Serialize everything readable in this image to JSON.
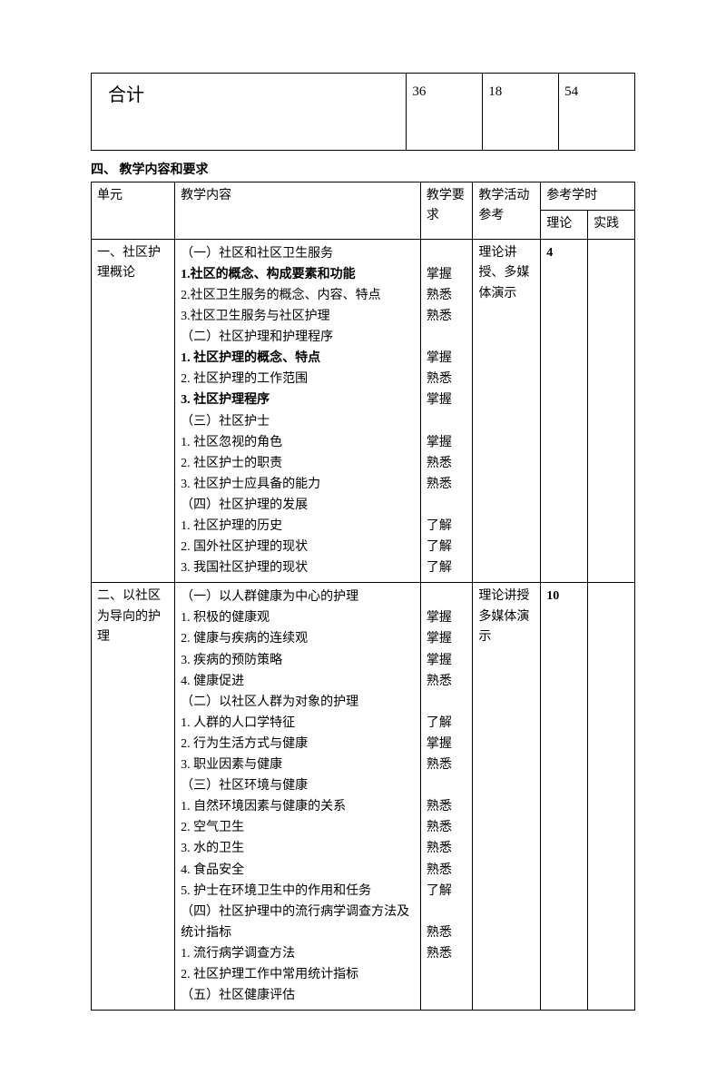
{
  "summary": {
    "label": "合计",
    "col1": "36",
    "col2": "18",
    "col3": "54"
  },
  "section_heading": "四、    教学内容和要求",
  "headers": {
    "unit": "单元",
    "content": "教学内容",
    "req": "教学要求",
    "activity": "教学活动参考",
    "ref_hours": "参考学时",
    "theory": "理论",
    "practice": "实践"
  },
  "rows": [
    {
      "unit": "一、社区护理概论",
      "activity": "理论讲授、多媒体演示",
      "theory": "4",
      "practice": "",
      "lines": [
        {
          "t": "（一）社区和社区卫生服务",
          "r": ""
        },
        {
          "t": "1.社区的概念、构成要素和功能",
          "b": true,
          "r": "掌握"
        },
        {
          "t": "2.社区卫生服务的概念、内容、特点",
          "r": "熟悉"
        },
        {
          "t": "3.社区卫生服务与社区护理",
          "r": "熟悉"
        },
        {
          "t": "（二）社区护理和护理程序",
          "r": ""
        },
        {
          "t": "1.  社区护理的概念、特点",
          "b": true,
          "r": "掌握"
        },
        {
          "t": "2.  社区护理的工作范围",
          "r": "熟悉"
        },
        {
          "t": "3.  社区护理程序",
          "b": true,
          "r": "掌握"
        },
        {
          "t": "（三）社区护士",
          "r": ""
        },
        {
          "t": "1. 社区忽视的角色",
          "r": "掌握"
        },
        {
          "t": "2. 社区护士的职责",
          "r": "熟悉"
        },
        {
          "t": "3. 社区护士应具备的能力",
          "r": "熟悉"
        },
        {
          "t": "（四）社区护理的发展",
          "r": ""
        },
        {
          "t": "1. 社区护理的历史",
          "r": "了解"
        },
        {
          "t": "2. 国外社区护理的现状",
          "r": "了解"
        },
        {
          "t": "3. 我国社区护理的现状",
          "r": "了解"
        }
      ]
    },
    {
      "unit": "二、以社区为导向的护理",
      "activity": "理论讲授\n多媒体演示",
      "theory": "10",
      "practice": "",
      "lines": [
        {
          "t": "（一）以人群健康为中心的护理",
          "r": ""
        },
        {
          "t": "1.  积极的健康观",
          "r": "掌握"
        },
        {
          "t": "2.  健康与疾病的连续观",
          "r": "掌握"
        },
        {
          "t": "3.  疾病的预防策略",
          "r": "掌握"
        },
        {
          "t": "4.  健康促进",
          "r": "熟悉"
        },
        {
          "t": "（二）以社区人群为对象的护理",
          "r": ""
        },
        {
          "t": "1.  人群的人口学特征",
          "r": "了解"
        },
        {
          "t": "2.  行为生活方式与健康",
          "r": "掌握"
        },
        {
          "t": "3.  职业因素与健康",
          "r": "熟悉"
        },
        {
          "t": "（三）社区环境与健康",
          "r": ""
        },
        {
          "t": "1.  自然环境因素与健康的关系",
          "r": "熟悉"
        },
        {
          "t": "2.  空气卫生",
          "r": "熟悉"
        },
        {
          "t": "3.  水的卫生",
          "r": "熟悉"
        },
        {
          "t": "4.  食品安全",
          "r": "熟悉"
        },
        {
          "t": "5.  护士在环境卫生中的作用和任务",
          "r": "了解"
        },
        {
          "t": "（四）社区护理中的流行病学调查方法及统计指标",
          "r": ""
        },
        {
          "t": "1.  流行病学调查方法",
          "r": "熟悉"
        },
        {
          "t": "2.  社区护理工作中常用统计指标",
          "r": "熟悉"
        },
        {
          "t": "（五）社区健康评估",
          "r": ""
        }
      ]
    }
  ]
}
